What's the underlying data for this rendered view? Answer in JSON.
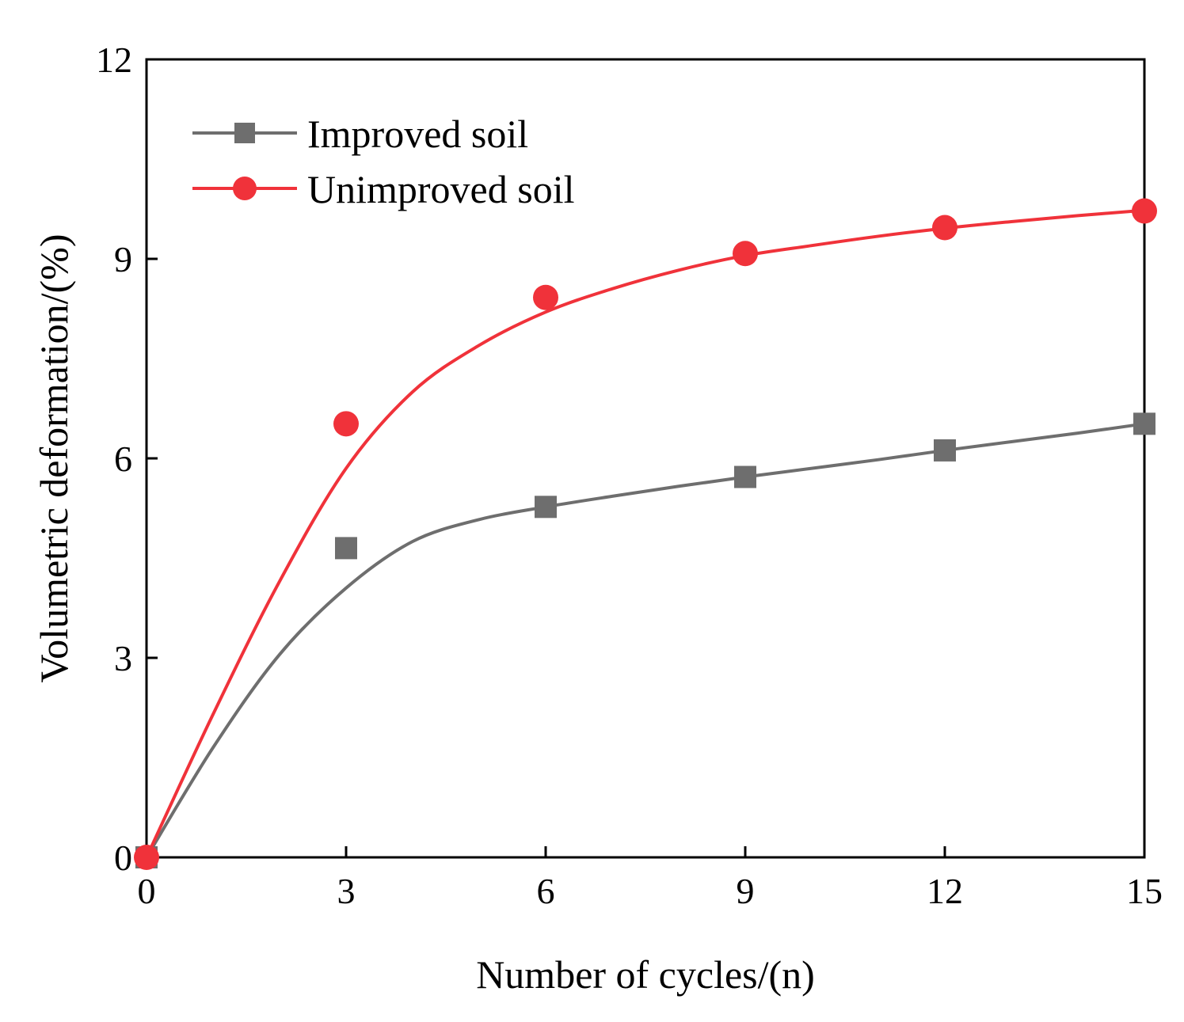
{
  "chart_data": {
    "type": "scatter",
    "title": "",
    "xlabel": "Number of cycles/(n)",
    "ylabel": "Volumetric deformation/(%)",
    "xlim": [
      0,
      15
    ],
    "ylim": [
      0,
      12
    ],
    "xticks": [
      0,
      3,
      6,
      9,
      12,
      15
    ],
    "yticks": [
      0,
      3,
      6,
      9,
      12
    ],
    "xtick_labels": [
      "0",
      "3",
      "6",
      "9",
      "12",
      "15"
    ],
    "ytick_labels": [
      "0",
      "3",
      "6",
      "9",
      "12"
    ],
    "grid": false,
    "legend_position": "top-left",
    "series": [
      {
        "name": "Improved soil",
        "marker": "square",
        "color": "#6e6e6e",
        "x": [
          0,
          3,
          6,
          9,
          12,
          15
        ],
        "y": [
          0,
          4.65,
          5.27,
          5.72,
          6.12,
          6.52
        ],
        "fit_x": [
          0,
          1,
          2,
          3,
          4,
          5,
          6,
          7,
          8,
          9,
          10,
          11,
          12,
          13,
          14,
          15
        ],
        "fit_y": [
          0,
          1.65,
          3.05,
          4.05,
          4.75,
          5.08,
          5.27,
          5.43,
          5.58,
          5.72,
          5.85,
          5.98,
          6.12,
          6.25,
          6.38,
          6.52
        ]
      },
      {
        "name": "Unimproved soil",
        "marker": "circle",
        "color": "#f0323a",
        "x": [
          0,
          3,
          6,
          9,
          12,
          15
        ],
        "y": [
          0,
          6.52,
          8.42,
          9.08,
          9.47,
          9.72
        ],
        "fit_x": [
          0,
          1,
          2,
          3,
          4,
          5,
          6,
          7,
          8,
          9,
          10,
          11,
          12,
          13,
          14,
          15
        ],
        "fit_y": [
          0,
          2.15,
          4.15,
          5.85,
          7.0,
          7.7,
          8.2,
          8.55,
          8.83,
          9.05,
          9.2,
          9.34,
          9.46,
          9.56,
          9.65,
          9.73
        ]
      }
    ]
  }
}
